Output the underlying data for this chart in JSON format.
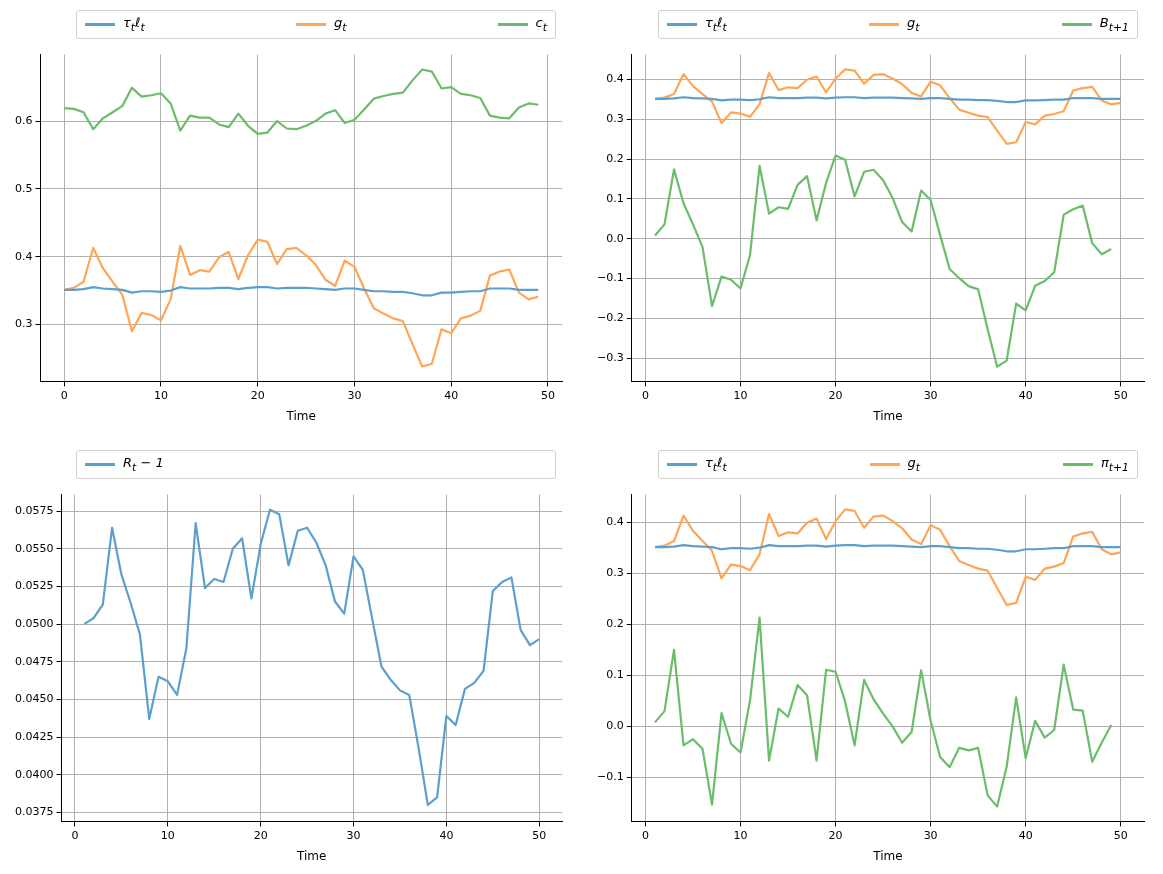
{
  "chart_data": [
    {
      "type": "line",
      "xlabel": "Time",
      "legend": "top",
      "grid": true,
      "xlim": [
        -2.45,
        51.45
      ],
      "xticks": [
        0,
        10,
        20,
        30,
        40,
        50
      ],
      "ylim": [
        0.216,
        0.698
      ],
      "yticks": [
        0.3,
        0.4,
        0.5,
        0.6
      ],
      "x": [
        0,
        1,
        2,
        3,
        4,
        5,
        6,
        7,
        8,
        9,
        10,
        11,
        12,
        13,
        14,
        15,
        16,
        17,
        18,
        19,
        20,
        21,
        22,
        23,
        24,
        25,
        26,
        27,
        28,
        29,
        30,
        31,
        32,
        33,
        34,
        35,
        36,
        37,
        38,
        39,
        40,
        41,
        42,
        43,
        44,
        45,
        46,
        47,
        48,
        49
      ],
      "series": [
        {
          "name": "τ$_{t}$ℓ$_{t}$",
          "color": "#5b9fcc",
          "values": [
            0.351,
            0.351,
            0.352,
            0.355,
            0.353,
            0.352,
            0.351,
            0.347,
            0.349,
            0.349,
            0.348,
            0.35,
            0.355,
            0.353,
            0.353,
            0.353,
            0.354,
            0.354,
            0.352,
            0.354,
            0.355,
            0.355,
            0.353,
            0.354,
            0.354,
            0.354,
            0.353,
            0.352,
            0.351,
            0.353,
            0.353,
            0.351,
            0.349,
            0.349,
            0.348,
            0.348,
            0.346,
            0.343,
            0.343,
            0.347,
            0.347,
            0.348,
            0.349,
            0.349,
            0.353,
            0.353,
            0.353,
            0.351,
            0.351,
            0.351
          ]
        },
        {
          "name": "g$_{t}$",
          "color": "#ffa556",
          "values": [
            0.351,
            0.354,
            0.363,
            0.413,
            0.383,
            0.363,
            0.344,
            0.29,
            0.317,
            0.314,
            0.306,
            0.337,
            0.416,
            0.373,
            0.38,
            0.378,
            0.399,
            0.407,
            0.367,
            0.402,
            0.425,
            0.422,
            0.389,
            0.411,
            0.413,
            0.402,
            0.388,
            0.366,
            0.357,
            0.394,
            0.385,
            0.353,
            0.324,
            0.316,
            0.309,
            0.305,
            0.271,
            0.238,
            0.242,
            0.293,
            0.287,
            0.309,
            0.313,
            0.32,
            0.372,
            0.378,
            0.381,
            0.347,
            0.337,
            0.341
          ]
        },
        {
          "name": "c$_{t}$",
          "color": "#6bbc6b",
          "values": [
            0.619,
            0.618,
            0.613,
            0.588,
            0.604,
            0.613,
            0.622,
            0.649,
            0.636,
            0.638,
            0.641,
            0.626,
            0.586,
            0.608,
            0.605,
            0.605,
            0.595,
            0.591,
            0.611,
            0.593,
            0.581,
            0.583,
            0.6,
            0.589,
            0.588,
            0.593,
            0.6,
            0.611,
            0.616,
            0.597,
            0.602,
            0.617,
            0.633,
            0.637,
            0.64,
            0.642,
            0.66,
            0.676,
            0.673,
            0.648,
            0.65,
            0.64,
            0.638,
            0.634,
            0.608,
            0.605,
            0.604,
            0.62,
            0.626,
            0.624
          ]
        }
      ]
    },
    {
      "type": "line",
      "xlabel": "Time",
      "legend": "top",
      "grid": true,
      "xlim": [
        -1.45,
        52.45
      ],
      "xticks": [
        0,
        10,
        20,
        30,
        40,
        50
      ],
      "ylim": [
        -0.358,
        0.462
      ],
      "yticks": [
        {
          "value": -0.3,
          "label": "−0.3"
        },
        {
          "value": -0.2,
          "label": "−0.2"
        },
        {
          "value": -0.1,
          "label": "−0.1"
        },
        {
          "value": 0,
          "label": "0.0"
        },
        0.1,
        0.2,
        0.3,
        0.4
      ],
      "x": [
        1,
        2,
        3,
        4,
        5,
        6,
        7,
        8,
        9,
        10,
        11,
        12,
        13,
        14,
        15,
        16,
        17,
        18,
        19,
        20,
        21,
        22,
        23,
        24,
        25,
        26,
        27,
        28,
        29,
        30,
        31,
        32,
        33,
        34,
        35,
        36,
        37,
        38,
        39,
        40,
        41,
        42,
        43,
        44,
        45,
        46,
        47,
        48,
        49,
        50
      ],
      "series": [
        {
          "name": "τ$_{t}$ℓ$_{t}$",
          "color": "#5b9fcc",
          "values": [
            0.351,
            0.351,
            0.352,
            0.355,
            0.353,
            0.352,
            0.351,
            0.347,
            0.349,
            0.349,
            0.348,
            0.35,
            0.355,
            0.353,
            0.353,
            0.353,
            0.354,
            0.354,
            0.352,
            0.354,
            0.355,
            0.355,
            0.353,
            0.354,
            0.354,
            0.354,
            0.353,
            0.352,
            0.351,
            0.353,
            0.353,
            0.351,
            0.349,
            0.349,
            0.348,
            0.348,
            0.346,
            0.343,
            0.343,
            0.347,
            0.347,
            0.348,
            0.349,
            0.349,
            0.353,
            0.353,
            0.353,
            0.351,
            0.351,
            0.351
          ]
        },
        {
          "name": "g$_{t}$",
          "color": "#ffa556",
          "values": [
            0.351,
            0.354,
            0.363,
            0.413,
            0.383,
            0.363,
            0.344,
            0.29,
            0.317,
            0.314,
            0.306,
            0.337,
            0.416,
            0.373,
            0.38,
            0.378,
            0.399,
            0.407,
            0.367,
            0.402,
            0.425,
            0.422,
            0.389,
            0.411,
            0.413,
            0.402,
            0.388,
            0.366,
            0.357,
            0.394,
            0.385,
            0.353,
            0.324,
            0.316,
            0.309,
            0.305,
            0.271,
            0.238,
            0.242,
            0.293,
            0.287,
            0.309,
            0.313,
            0.32,
            0.372,
            0.378,
            0.381,
            0.347,
            0.337,
            0.341
          ]
        },
        {
          "name": "B$_{t+1}$",
          "color": "#6bbc6b",
          "values": [
            0.008,
            0.036,
            0.174,
            0.089,
            0.036,
            -0.021,
            -0.169,
            -0.095,
            -0.103,
            -0.125,
            -0.041,
            0.183,
            0.063,
            0.079,
            0.075,
            0.135,
            0.157,
            0.046,
            0.14,
            0.209,
            0.198,
            0.106,
            0.168,
            0.173,
            0.147,
            0.102,
            0.042,
            0.018,
            0.121,
            0.097,
            0.009,
            -0.076,
            -0.099,
            -0.119,
            -0.127,
            -0.227,
            -0.321,
            -0.306,
            -0.163,
            -0.18,
            -0.118,
            -0.106,
            -0.084,
            0.06,
            0.074,
            0.083,
            -0.011,
            -0.039,
            -0.026,
            null
          ]
        }
      ]
    },
    {
      "type": "line",
      "xlabel": "Time",
      "legend": "top",
      "grid": true,
      "xlim": [
        -1.45,
        52.45
      ],
      "xticks": [
        0,
        10,
        20,
        30,
        40,
        50
      ],
      "ylim": [
        0.0369,
        0.0586
      ],
      "yticks": [
        0.0375,
        {
          "value": 0.04,
          "label": "0.0400"
        },
        0.0425,
        {
          "value": 0.045,
          "label": "0.0450"
        },
        0.0475,
        {
          "value": 0.05,
          "label": "0.0500"
        },
        0.0525,
        {
          "value": 0.055,
          "label": "0.0550"
        },
        0.0575
      ],
      "x": [
        1,
        2,
        3,
        4,
        5,
        6,
        7,
        8,
        9,
        10,
        11,
        12,
        13,
        14,
        15,
        16,
        17,
        18,
        19,
        20,
        21,
        22,
        23,
        24,
        25,
        26,
        27,
        28,
        29,
        30,
        31,
        32,
        33,
        34,
        35,
        36,
        37,
        38,
        39,
        40,
        41,
        42,
        43,
        44,
        45,
        46,
        47,
        48,
        49,
        50
      ],
      "series": [
        {
          "name": "R$_{t}$ − 1",
          "color": "#5b9fcc",
          "values": [
            0.05,
            0.0504,
            0.0513,
            0.0564,
            0.0533,
            0.0514,
            0.0493,
            0.0437,
            0.0465,
            0.0462,
            0.0453,
            0.0484,
            0.0567,
            0.0524,
            0.053,
            0.0528,
            0.055,
            0.0557,
            0.0517,
            0.0553,
            0.0576,
            0.0573,
            0.0539,
            0.0562,
            0.0564,
            0.0554,
            0.0539,
            0.0515,
            0.0507,
            0.0545,
            0.0536,
            0.0504,
            0.0472,
            0.0463,
            0.0456,
            0.0453,
            0.0418,
            0.038,
            0.0385,
            0.0439,
            0.0433,
            0.0457,
            0.0461,
            0.0469,
            0.0522,
            0.0528,
            0.0531,
            0.0496,
            0.0486,
            0.049
          ]
        }
      ]
    },
    {
      "type": "line",
      "xlabel": "Time",
      "legend": "top",
      "grid": true,
      "xlim": [
        -1.45,
        52.45
      ],
      "xticks": [
        0,
        10,
        20,
        30,
        40,
        50
      ],
      "ylim": [
        -0.186,
        0.454
      ],
      "yticks": [
        {
          "value": -0.1,
          "label": "−0.1"
        },
        {
          "value": 0,
          "label": "0.0"
        },
        0.1,
        0.2,
        0.3,
        0.4
      ],
      "x": [
        1,
        2,
        3,
        4,
        5,
        6,
        7,
        8,
        9,
        10,
        11,
        12,
        13,
        14,
        15,
        16,
        17,
        18,
        19,
        20,
        21,
        22,
        23,
        24,
        25,
        26,
        27,
        28,
        29,
        30,
        31,
        32,
        33,
        34,
        35,
        36,
        37,
        38,
        39,
        40,
        41,
        42,
        43,
        44,
        45,
        46,
        47,
        48,
        49,
        50
      ],
      "series": [
        {
          "name": "τ$_{t}$ℓ$_{t}$",
          "color": "#5b9fcc",
          "values": [
            0.351,
            0.351,
            0.352,
            0.355,
            0.353,
            0.352,
            0.351,
            0.347,
            0.349,
            0.349,
            0.348,
            0.35,
            0.355,
            0.353,
            0.353,
            0.353,
            0.354,
            0.354,
            0.352,
            0.354,
            0.355,
            0.355,
            0.353,
            0.354,
            0.354,
            0.354,
            0.353,
            0.352,
            0.351,
            0.353,
            0.353,
            0.351,
            0.349,
            0.349,
            0.348,
            0.348,
            0.346,
            0.343,
            0.343,
            0.347,
            0.347,
            0.348,
            0.349,
            0.349,
            0.353,
            0.353,
            0.353,
            0.351,
            0.351,
            0.351
          ]
        },
        {
          "name": "g$_{t}$",
          "color": "#ffa556",
          "values": [
            0.351,
            0.354,
            0.363,
            0.413,
            0.383,
            0.363,
            0.344,
            0.29,
            0.317,
            0.314,
            0.306,
            0.337,
            0.416,
            0.373,
            0.38,
            0.378,
            0.399,
            0.407,
            0.367,
            0.402,
            0.425,
            0.422,
            0.389,
            0.411,
            0.413,
            0.402,
            0.388,
            0.366,
            0.357,
            0.394,
            0.385,
            0.353,
            0.324,
            0.316,
            0.309,
            0.305,
            0.271,
            0.238,
            0.242,
            0.293,
            0.287,
            0.309,
            0.313,
            0.32,
            0.372,
            0.378,
            0.381,
            0.347,
            0.337,
            0.341
          ]
        },
        {
          "name": "π$_{t+1}$",
          "color": "#6bbc6b",
          "values": [
            0.008,
            0.03,
            0.15,
            -0.037,
            -0.025,
            -0.044,
            -0.153,
            0.026,
            -0.034,
            -0.051,
            0.051,
            0.213,
            -0.067,
            0.035,
            0.019,
            0.081,
            0.061,
            -0.067,
            0.111,
            0.107,
            0.049,
            -0.037,
            0.091,
            0.053,
            0.025,
            0.0,
            -0.032,
            -0.011,
            0.11,
            0.011,
            -0.06,
            -0.08,
            -0.042,
            -0.047,
            -0.042,
            -0.135,
            -0.157,
            -0.079,
            0.057,
            -0.062,
            0.011,
            -0.022,
            -0.007,
            0.121,
            0.033,
            0.031,
            -0.069,
            -0.032,
            0.003,
            null
          ]
        }
      ]
    }
  ]
}
